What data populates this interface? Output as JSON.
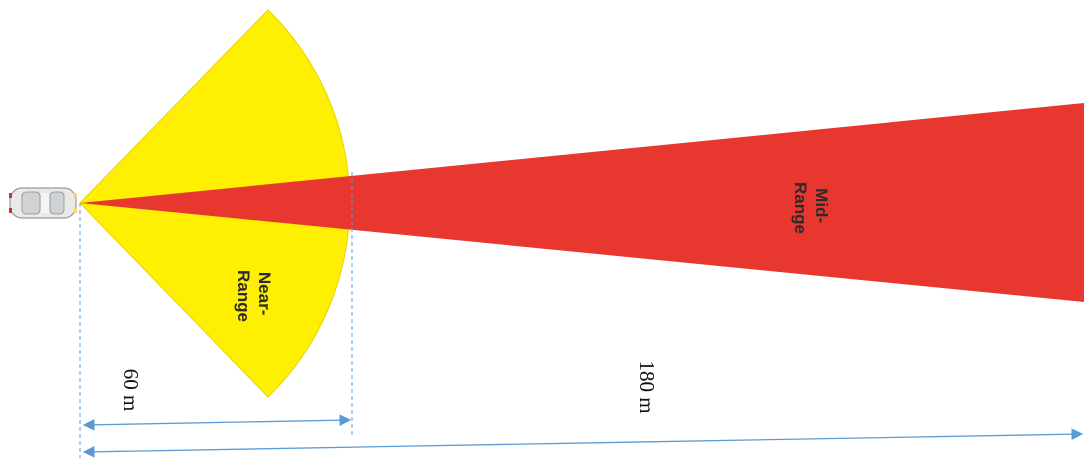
{
  "zones": {
    "near": {
      "label_line1": "Near-",
      "label_line2": "Range",
      "color": "#FFEF00"
    },
    "mid": {
      "label_line1": "Mid-",
      "label_line2": "Range",
      "color": "#E8372E"
    }
  },
  "distances": {
    "near": "60 m",
    "mid": "180 m"
  },
  "colors": {
    "guide_line": "#5B9BD5",
    "arrow": "#5B9BD5",
    "car_body": "#E9E9E9"
  },
  "icons": {
    "vehicle": "car-top-view-icon"
  }
}
